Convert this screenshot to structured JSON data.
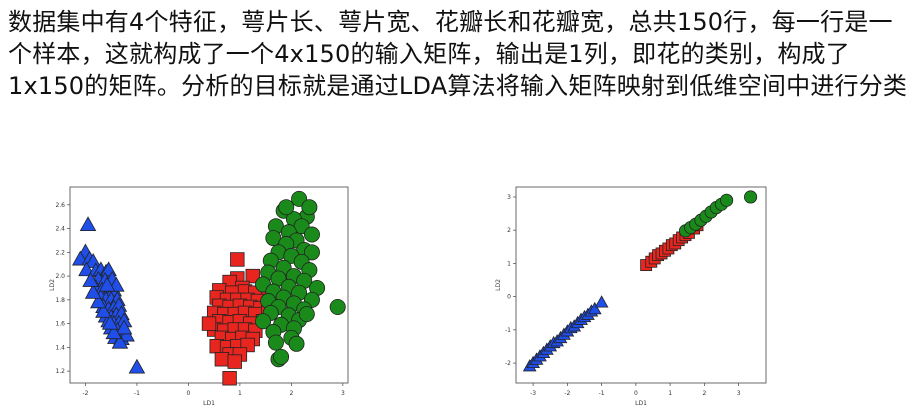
{
  "paragraph": "数据集中有4个特征，萼片长、萼片宽、花瓣长和花瓣宽，总共150行，每一行是一个样本，这就构成了一个4x150的输入矩阵，输出是1列，即花的类别，构成了1x150的矩阵。分析的目标就是通过LDA算法将输入矩阵映射到低维空间中进行分类",
  "colors": {
    "class_a": "#1f4ee8",
    "class_b": "#e8261f",
    "class_c": "#1a8a1a",
    "edge": "#222222"
  },
  "chart_data": [
    {
      "type": "scatter",
      "xlabel": "LD1",
      "ylabel": "LD2",
      "xlim": [
        -2.3,
        3.1
      ],
      "ylim": [
        1.1,
        2.75
      ],
      "xticks": [
        "-2",
        "-1",
        "0",
        "1",
        "2",
        "3"
      ],
      "yticks": [
        "1.2",
        "1.4",
        "1.6",
        "1.8",
        "2.0",
        "2.2",
        "2.4",
        "2.6"
      ],
      "grid": false,
      "series": [
        {
          "marker": "triangle",
          "color": "#1f4ee8",
          "points": [
            [
              -1.95,
              2.43
            ],
            [
              -2.0,
              2.2
            ],
            [
              -2.1,
              2.14
            ],
            [
              -1.92,
              2.14
            ],
            [
              -1.85,
              2.12
            ],
            [
              -1.98,
              2.05
            ],
            [
              -1.8,
              2.04
            ],
            [
              -1.7,
              2.05
            ],
            [
              -1.6,
              2.03
            ],
            [
              -1.55,
              2.05
            ],
            [
              -1.75,
              1.97
            ],
            [
              -1.62,
              1.96
            ],
            [
              -1.48,
              1.97
            ],
            [
              -1.8,
              1.9
            ],
            [
              -1.68,
              1.88
            ],
            [
              -1.55,
              1.86
            ],
            [
              -1.45,
              1.88
            ],
            [
              -1.4,
              1.92
            ],
            [
              -1.7,
              1.82
            ],
            [
              -1.6,
              1.8
            ],
            [
              -1.5,
              1.8
            ],
            [
              -1.38,
              1.8
            ],
            [
              -1.65,
              1.74
            ],
            [
              -1.55,
              1.72
            ],
            [
              -1.45,
              1.73
            ],
            [
              -1.35,
              1.75
            ],
            [
              -1.6,
              1.66
            ],
            [
              -1.5,
              1.65
            ],
            [
              -1.4,
              1.67
            ],
            [
              -1.3,
              1.68
            ],
            [
              -1.45,
              1.6
            ],
            [
              -1.35,
              1.6
            ],
            [
              -1.25,
              1.62
            ],
            [
              -1.5,
              1.56
            ],
            [
              -1.38,
              1.54
            ],
            [
              -1.3,
              1.52
            ],
            [
              -1.42,
              1.48
            ],
            [
              -1.3,
              1.47
            ],
            [
              -1.2,
              1.5
            ],
            [
              -1.55,
              1.62
            ],
            [
              -1.65,
              1.7
            ],
            [
              -1.75,
              1.78
            ],
            [
              -1.85,
              1.86
            ],
            [
              -1.9,
              1.96
            ],
            [
              -1.58,
              1.92
            ],
            [
              -1.25,
              1.56
            ],
            [
              -1.33,
              1.44
            ],
            [
              -1.45,
              1.52
            ],
            [
              -1.52,
              1.6
            ],
            [
              -1.0,
              1.23
            ]
          ]
        },
        {
          "marker": "square",
          "color": "#e8261f",
          "points": [
            [
              0.95,
              2.14
            ],
            [
              1.25,
              2.0
            ],
            [
              0.95,
              1.98
            ],
            [
              0.8,
              1.95
            ],
            [
              1.05,
              1.9
            ],
            [
              0.6,
              1.88
            ],
            [
              0.85,
              1.86
            ],
            [
              1.1,
              1.87
            ],
            [
              1.3,
              1.86
            ],
            [
              1.55,
              1.84
            ],
            [
              0.55,
              1.82
            ],
            [
              0.75,
              1.8
            ],
            [
              0.95,
              1.8
            ],
            [
              1.15,
              1.8
            ],
            [
              1.35,
              1.79
            ],
            [
              0.6,
              1.75
            ],
            [
              0.8,
              1.74
            ],
            [
              1.0,
              1.75
            ],
            [
              1.2,
              1.74
            ],
            [
              1.4,
              1.73
            ],
            [
              0.5,
              1.69
            ],
            [
              0.7,
              1.68
            ],
            [
              0.9,
              1.68
            ],
            [
              1.1,
              1.69
            ],
            [
              1.3,
              1.68
            ],
            [
              0.6,
              1.62
            ],
            [
              0.8,
              1.61
            ],
            [
              1.0,
              1.62
            ],
            [
              1.2,
              1.6
            ],
            [
              1.45,
              1.62
            ],
            [
              0.5,
              1.55
            ],
            [
              0.7,
              1.54
            ],
            [
              0.9,
              1.55
            ],
            [
              1.1,
              1.55
            ],
            [
              1.3,
              1.54
            ],
            [
              0.65,
              1.48
            ],
            [
              0.85,
              1.47
            ],
            [
              1.05,
              1.48
            ],
            [
              1.25,
              1.47
            ],
            [
              0.55,
              1.41
            ],
            [
              0.75,
              1.4
            ],
            [
              0.95,
              1.41
            ],
            [
              1.15,
              1.42
            ],
            [
              0.8,
              1.34
            ],
            [
              1.0,
              1.34
            ],
            [
              0.65,
              1.3
            ],
            [
              0.9,
              1.28
            ],
            [
              1.55,
              1.72
            ],
            [
              0.4,
              1.6
            ],
            [
              0.8,
              1.14
            ]
          ]
        },
        {
          "marker": "circle",
          "color": "#1a8a1a",
          "points": [
            [
              2.15,
              2.65
            ],
            [
              1.85,
              2.55
            ],
            [
              2.3,
              2.5
            ],
            [
              2.05,
              2.48
            ],
            [
              1.7,
              2.42
            ],
            [
              2.2,
              2.42
            ],
            [
              1.95,
              2.37
            ],
            [
              2.4,
              2.35
            ],
            [
              1.65,
              2.32
            ],
            [
              2.1,
              2.3
            ],
            [
              1.9,
              2.27
            ],
            [
              2.25,
              2.22
            ],
            [
              1.75,
              2.2
            ],
            [
              2.4,
              2.2
            ],
            [
              2.0,
              2.17
            ],
            [
              1.6,
              2.13
            ],
            [
              2.2,
              2.12
            ],
            [
              1.85,
              2.07
            ],
            [
              2.35,
              2.05
            ],
            [
              1.55,
              2.03
            ],
            [
              2.05,
              2.0
            ],
            [
              1.75,
              1.98
            ],
            [
              2.25,
              1.96
            ],
            [
              1.45,
              1.93
            ],
            [
              1.95,
              1.91
            ],
            [
              2.5,
              1.9
            ],
            [
              1.65,
              1.87
            ],
            [
              2.15,
              1.86
            ],
            [
              1.85,
              1.82
            ],
            [
              2.4,
              1.8
            ],
            [
              1.55,
              1.79
            ],
            [
              2.05,
              1.77
            ],
            [
              1.75,
              1.74
            ],
            [
              2.25,
              1.72
            ],
            [
              2.9,
              1.74
            ],
            [
              1.6,
              1.69
            ],
            [
              1.95,
              1.67
            ],
            [
              2.15,
              1.63
            ],
            [
              1.45,
              1.62
            ],
            [
              1.8,
              1.59
            ],
            [
              2.05,
              1.56
            ],
            [
              1.65,
              1.53
            ],
            [
              2.0,
              1.48
            ],
            [
              1.7,
              1.44
            ],
            [
              2.1,
              1.43
            ],
            [
              1.75,
              1.3
            ],
            [
              1.8,
              1.32
            ],
            [
              2.3,
              1.68
            ],
            [
              1.9,
              2.58
            ],
            [
              2.35,
              2.58
            ]
          ]
        }
      ]
    },
    {
      "type": "scatter",
      "xlabel": "LD1",
      "ylabel": "LD2",
      "xlim": [
        -3.5,
        3.8
      ],
      "ylim": [
        -2.6,
        3.3
      ],
      "xticks": [
        "-3",
        "-2",
        "-1",
        "0",
        "1",
        "2",
        "3"
      ],
      "yticks": [
        "-2",
        "-1",
        "0",
        "1",
        "2",
        "3"
      ],
      "grid": false,
      "series": [
        {
          "marker": "triangle",
          "color": "#1f4ee8",
          "points": [
            [
              -3.1,
              -2.1
            ],
            [
              -3.0,
              -2.0
            ],
            [
              -2.9,
              -1.9
            ],
            [
              -2.8,
              -1.8
            ],
            [
              -2.7,
              -1.7
            ],
            [
              -2.6,
              -1.6
            ],
            [
              -2.5,
              -1.5
            ],
            [
              -2.4,
              -1.4
            ],
            [
              -2.3,
              -1.35
            ],
            [
              -2.2,
              -1.25
            ],
            [
              -2.1,
              -1.15
            ],
            [
              -2.0,
              -1.05
            ],
            [
              -1.9,
              -0.95
            ],
            [
              -1.8,
              -0.9
            ],
            [
              -1.7,
              -0.8
            ],
            [
              -1.6,
              -0.7
            ],
            [
              -1.5,
              -0.62
            ],
            [
              -1.4,
              -0.55
            ],
            [
              -1.3,
              -0.45
            ],
            [
              -1.2,
              -0.38
            ],
            [
              -1.0,
              -0.18
            ]
          ]
        },
        {
          "marker": "square",
          "color": "#e8261f",
          "points": [
            [
              0.3,
              0.95
            ],
            [
              0.45,
              1.05
            ],
            [
              0.55,
              1.15
            ],
            [
              0.65,
              1.25
            ],
            [
              0.75,
              1.3
            ],
            [
              0.85,
              1.38
            ],
            [
              0.95,
              1.45
            ],
            [
              1.05,
              1.55
            ],
            [
              1.15,
              1.6
            ],
            [
              1.25,
              1.7
            ],
            [
              1.35,
              1.78
            ],
            [
              1.45,
              1.85
            ],
            [
              1.55,
              1.92
            ],
            [
              1.7,
              2.05
            ],
            [
              1.8,
              2.15
            ]
          ]
        },
        {
          "marker": "circle",
          "color": "#1a8a1a",
          "points": [
            [
              1.45,
              1.98
            ],
            [
              1.6,
              2.08
            ],
            [
              1.75,
              2.18
            ],
            [
              1.9,
              2.3
            ],
            [
              2.05,
              2.42
            ],
            [
              2.2,
              2.55
            ],
            [
              2.35,
              2.68
            ],
            [
              2.5,
              2.78
            ],
            [
              2.65,
              2.9
            ],
            [
              3.35,
              3.0
            ]
          ]
        }
      ]
    }
  ]
}
